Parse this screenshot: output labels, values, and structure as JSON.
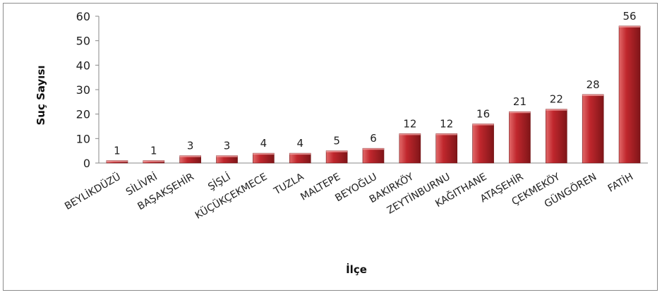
{
  "chart_data": {
    "type": "bar",
    "title": "",
    "xlabel": "İlçe",
    "ylabel": "Suç Sayısı",
    "ylim": [
      0,
      60
    ],
    "yticks": [
      0,
      10,
      20,
      30,
      40,
      50,
      60
    ],
    "grid": false,
    "categories": [
      "BEYLİKDÜZÜ",
      "SİLİVRİ",
      "BAŞAKŞEHİR",
      "ŞİŞLİ",
      "KÜÇÜKÇEKMECE",
      "TUZLA",
      "MALTEPE",
      "BEYOĞLU",
      "BAKIRKÖY",
      "ZEYTİNBURNU",
      "KAĞITHANE",
      "ATAŞEHİR",
      "ÇEKMEKÖY",
      "GÜNGÖREN",
      "FATİH"
    ],
    "values": [
      1,
      1,
      3,
      3,
      4,
      4,
      5,
      6,
      12,
      12,
      16,
      21,
      22,
      28,
      56
    ],
    "colors": {
      "bar_light": "#e26a6a",
      "bar_mid": "#c0272d",
      "bar_dark": "#7f1518"
    }
  }
}
